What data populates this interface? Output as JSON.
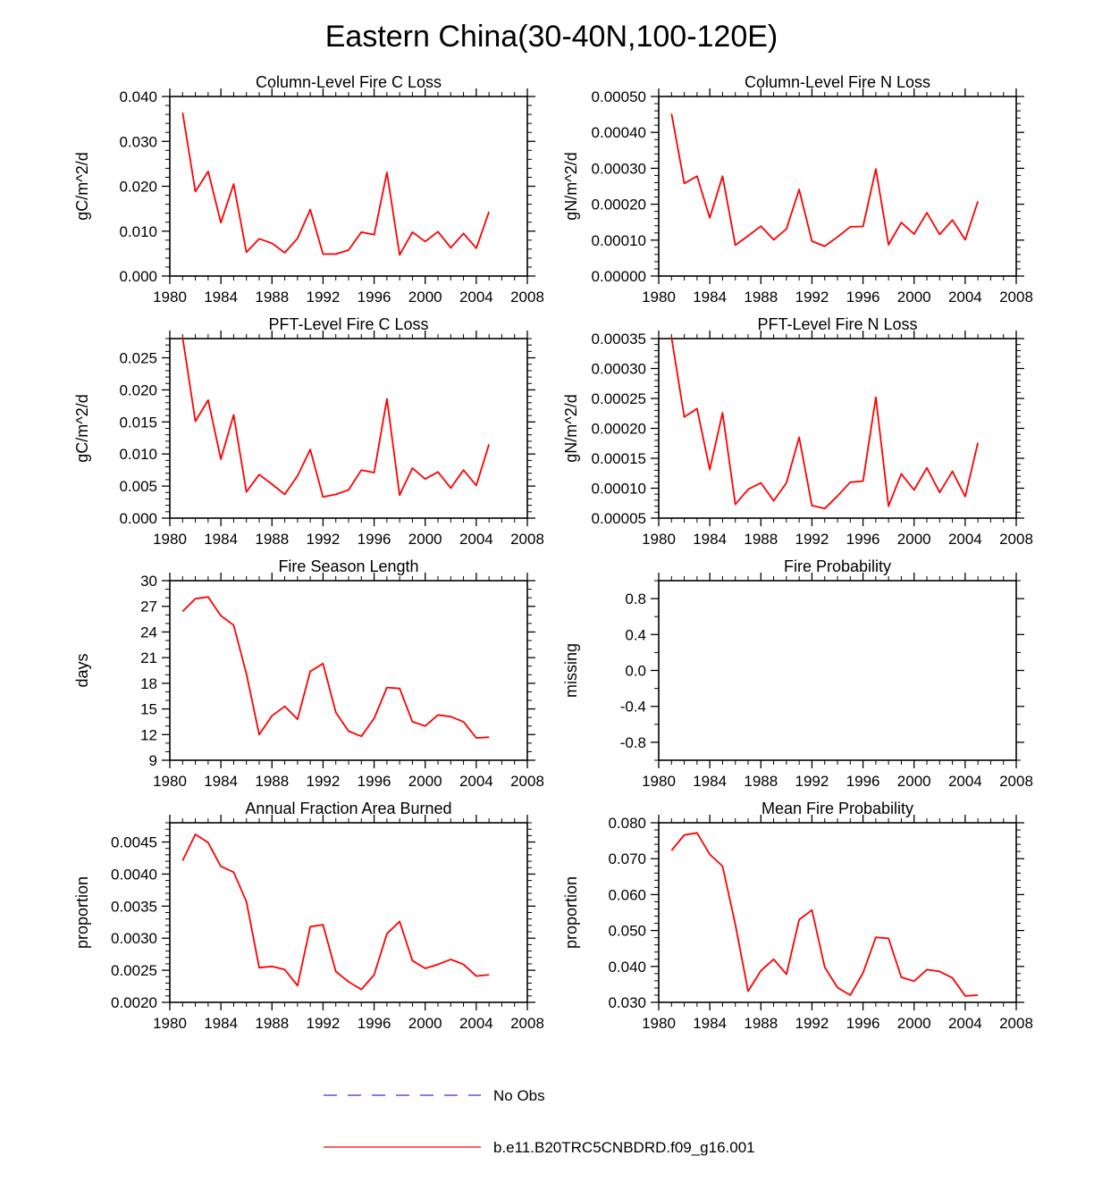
{
  "page_title": "Eastern China(30-40N,100-120E)",
  "colors": {
    "model_line": "#ff0000",
    "obs_line": "#3333cc",
    "axis": "#000000"
  },
  "legend": [
    {
      "label": "No Obs",
      "style": "dashed",
      "color": "#3333cc"
    },
    {
      "label": "b.e11.B20TRC5CNBDRD.f09_g16.001",
      "style": "solid",
      "color": "#ff0000"
    }
  ],
  "chart_data": [
    {
      "type": "line",
      "title": "Column-Level Fire C Loss",
      "ylabel": "gC/m^2/d",
      "xlim": [
        1980,
        2008
      ],
      "xticks": [
        1980,
        1984,
        1988,
        1992,
        1996,
        2000,
        2004,
        2008
      ],
      "ylim": [
        0.0,
        0.04
      ],
      "yticks": [
        0.0,
        0.01,
        0.02,
        0.03,
        0.04
      ],
      "ytick_labels": [
        "0.000",
        "0.010",
        "0.020",
        "0.030",
        "0.040"
      ],
      "yminor": 4,
      "x": [
        1981,
        1982,
        1983,
        1984,
        1985,
        1986,
        1987,
        1988,
        1989,
        1990,
        1991,
        1992,
        1993,
        1994,
        1995,
        1996,
        1997,
        1998,
        1999,
        2000,
        2001,
        2002,
        2003,
        2004,
        2005
      ],
      "series": [
        {
          "name": "b.e11.B20TRC5CNBDRD.f09_g16.001",
          "values": [
            0.0364,
            0.0188,
            0.0233,
            0.0119,
            0.0205,
            0.0053,
            0.0083,
            0.0073,
            0.0052,
            0.0084,
            0.0148,
            0.0049,
            0.0049,
            0.0058,
            0.0098,
            0.0092,
            0.0231,
            0.0047,
            0.0098,
            0.0077,
            0.0099,
            0.0063,
            0.0095,
            0.0062,
            0.0143
          ]
        }
      ]
    },
    {
      "type": "line",
      "title": "Column-Level Fire N Loss",
      "ylabel": "gN/m^2/d",
      "xlim": [
        1980,
        2008
      ],
      "xticks": [
        1980,
        1984,
        1988,
        1992,
        1996,
        2000,
        2004,
        2008
      ],
      "ylim": [
        0.0,
        0.0005
      ],
      "yticks": [
        0.0,
        0.0001,
        0.0002,
        0.0003,
        0.0004,
        0.0005
      ],
      "ytick_labels": [
        "0.00000",
        "0.00010",
        "0.00020",
        "0.00030",
        "0.00040",
        "0.00050"
      ],
      "yminor": 4,
      "x": [
        1981,
        1982,
        1983,
        1984,
        1985,
        1986,
        1987,
        1988,
        1989,
        1990,
        1991,
        1992,
        1993,
        1994,
        1995,
        1996,
        1997,
        1998,
        1999,
        2000,
        2001,
        2002,
        2003,
        2004,
        2005
      ],
      "series": [
        {
          "name": "b.e11.B20TRC5CNBDRD.f09_g16.001",
          "values": [
            0.000452,
            0.000258,
            0.000278,
            0.000162,
            0.000278,
            8.6e-05,
            0.000112,
            0.000139,
            0.000101,
            0.000131,
            0.000241,
            9.7e-05,
            8.3e-05,
            0.000109,
            0.000137,
            0.000138,
            0.000298,
            8.7e-05,
            0.000149,
            0.000117,
            0.000176,
            0.000116,
            0.000156,
            0.000101,
            0.000208
          ]
        }
      ]
    },
    {
      "type": "line",
      "title": "PFT-Level Fire C Loss",
      "ylabel": "gC/m^2/d",
      "xlim": [
        1980,
        2008
      ],
      "xticks": [
        1980,
        1984,
        1988,
        1992,
        1996,
        2000,
        2004,
        2008
      ],
      "ylim": [
        0.0,
        0.028
      ],
      "yticks": [
        0.0,
        0.005,
        0.01,
        0.015,
        0.02,
        0.025
      ],
      "ytick_labels": [
        "0.000",
        "0.005",
        "0.010",
        "0.015",
        "0.020",
        "0.025"
      ],
      "yminor": 4,
      "x": [
        1981,
        1982,
        1983,
        1984,
        1985,
        1986,
        1987,
        1988,
        1989,
        1990,
        1991,
        1992,
        1993,
        1994,
        1995,
        1996,
        1997,
        1998,
        1999,
        2000,
        2001,
        2002,
        2003,
        2004,
        2005
      ],
      "series": [
        {
          "name": "b.e11.B20TRC5CNBDRD.f09_g16.001",
          "values": [
            0.0282,
            0.0151,
            0.0184,
            0.0092,
            0.0161,
            0.0041,
            0.0068,
            0.0053,
            0.0037,
            0.0066,
            0.0107,
            0.0033,
            0.0037,
            0.0044,
            0.0075,
            0.0071,
            0.0186,
            0.0036,
            0.0078,
            0.0061,
            0.0072,
            0.0047,
            0.0075,
            0.0051,
            0.0115
          ]
        }
      ]
    },
    {
      "type": "line",
      "title": "PFT-Level Fire N Loss",
      "ylabel": "gN/m^2/d",
      "xlim": [
        1980,
        2008
      ],
      "xticks": [
        1980,
        1984,
        1988,
        1992,
        1996,
        2000,
        2004,
        2008
      ],
      "ylim": [
        5e-05,
        0.00035
      ],
      "yticks": [
        5e-05,
        0.0001,
        0.00015,
        0.0002,
        0.00025,
        0.0003,
        0.00035
      ],
      "ytick_labels": [
        "0.00005",
        "0.00010",
        "0.00015",
        "0.00020",
        "0.00025",
        "0.00030",
        "0.00035"
      ],
      "yminor": 4,
      "x": [
        1981,
        1982,
        1983,
        1984,
        1985,
        1986,
        1987,
        1988,
        1989,
        1990,
        1991,
        1992,
        1993,
        1994,
        1995,
        1996,
        1997,
        1998,
        1999,
        2000,
        2001,
        2002,
        2003,
        2004,
        2005
      ],
      "series": [
        {
          "name": "b.e11.B20TRC5CNBDRD.f09_g16.001",
          "values": [
            0.000352,
            0.000219,
            0.000233,
            0.000131,
            0.000226,
            7.3e-05,
            9.8e-05,
            0.000109,
            7.9e-05,
            0.000109,
            0.000185,
            7.1e-05,
            6.6e-05,
            8.7e-05,
            0.00011,
            0.000112,
            0.000252,
            7e-05,
            0.000124,
            9.7e-05,
            0.000134,
            9.3e-05,
            0.000128,
            8.6e-05,
            0.000176
          ]
        }
      ]
    },
    {
      "type": "line",
      "title": "Fire Season Length",
      "ylabel": "days",
      "xlim": [
        1980,
        2008
      ],
      "xticks": [
        1980,
        1984,
        1988,
        1992,
        1996,
        2000,
        2004,
        2008
      ],
      "ylim": [
        9,
        30
      ],
      "yticks": [
        9,
        12,
        15,
        18,
        21,
        24,
        27,
        30
      ],
      "ytick_labels": [
        "9",
        "12",
        "15",
        "18",
        "21",
        "24",
        "27",
        "30"
      ],
      "yminor": 2,
      "x": [
        1981,
        1982,
        1983,
        1984,
        1985,
        1986,
        1987,
        1988,
        1989,
        1990,
        1991,
        1992,
        1993,
        1994,
        1995,
        1996,
        1997,
        1998,
        1999,
        2000,
        2001,
        2002,
        2003,
        2004,
        2005
      ],
      "series": [
        {
          "name": "b.e11.B20TRC5CNBDRD.f09_g16.001",
          "values": [
            26.4,
            27.9,
            28.1,
            25.9,
            24.8,
            19.1,
            12.0,
            14.2,
            15.3,
            13.8,
            19.4,
            20.3,
            14.6,
            12.4,
            11.8,
            13.9,
            17.5,
            17.4,
            13.5,
            13.0,
            14.3,
            14.1,
            13.5,
            11.6,
            11.7
          ]
        }
      ]
    },
    {
      "type": "line",
      "title": "Fire Probability",
      "ylabel": "missing",
      "xlim": [
        1980,
        2008
      ],
      "xticks": [
        1980,
        1984,
        1988,
        1992,
        1996,
        2000,
        2004,
        2008
      ],
      "ylim": [
        -1.0,
        1.0
      ],
      "yticks": [
        -0.8,
        -0.4,
        0.0,
        0.4,
        0.8
      ],
      "ytick_labels": [
        "-0.8",
        "-0.4",
        "0.0",
        "0.4",
        "0.8"
      ],
      "yminor": 1,
      "x": [],
      "series": []
    },
    {
      "type": "line",
      "title": "Annual Fraction Area Burned",
      "ylabel": "proportion",
      "xlim": [
        1980,
        2008
      ],
      "xticks": [
        1980,
        1984,
        1988,
        1992,
        1996,
        2000,
        2004,
        2008
      ],
      "ylim": [
        0.002,
        0.0048
      ],
      "yticks": [
        0.002,
        0.0025,
        0.003,
        0.0035,
        0.004,
        0.0045
      ],
      "ytick_labels": [
        "0.0020",
        "0.0025",
        "0.0030",
        "0.0035",
        "0.0040",
        "0.0045"
      ],
      "yminor": 4,
      "x": [
        1981,
        1982,
        1983,
        1984,
        1985,
        1986,
        1987,
        1988,
        1989,
        1990,
        1991,
        1992,
        1993,
        1994,
        1995,
        1996,
        1997,
        1998,
        1999,
        2000,
        2001,
        2002,
        2003,
        2004,
        2005
      ],
      "series": [
        {
          "name": "b.e11.B20TRC5CNBDRD.f09_g16.001",
          "values": [
            0.00421,
            0.00462,
            0.00449,
            0.00412,
            0.00403,
            0.00357,
            0.00254,
            0.00256,
            0.00251,
            0.00226,
            0.00318,
            0.00321,
            0.00248,
            0.00232,
            0.0022,
            0.00243,
            0.00307,
            0.00326,
            0.00265,
            0.00253,
            0.00259,
            0.00267,
            0.00259,
            0.00241,
            0.00243
          ]
        }
      ]
    },
    {
      "type": "line",
      "title": "Mean Fire Probability",
      "ylabel": "proportion",
      "xlim": [
        1980,
        2008
      ],
      "xticks": [
        1980,
        1984,
        1988,
        1992,
        1996,
        2000,
        2004,
        2008
      ],
      "ylim": [
        0.03,
        0.08
      ],
      "yticks": [
        0.03,
        0.04,
        0.05,
        0.06,
        0.07,
        0.08
      ],
      "ytick_labels": [
        "0.030",
        "0.040",
        "0.050",
        "0.060",
        "0.070",
        "0.080"
      ],
      "yminor": 4,
      "x": [
        1981,
        1982,
        1983,
        1984,
        1985,
        1986,
        1987,
        1988,
        1989,
        1990,
        1991,
        1992,
        1993,
        1994,
        1995,
        1996,
        1997,
        1998,
        1999,
        2000,
        2001,
        2002,
        2003,
        2004,
        2005
      ],
      "series": [
        {
          "name": "b.e11.B20TRC5CNBDRD.f09_g16.001",
          "values": [
            0.0723,
            0.0766,
            0.0772,
            0.0712,
            0.0679,
            0.0517,
            0.0331,
            0.0388,
            0.042,
            0.0378,
            0.053,
            0.0557,
            0.0398,
            0.0341,
            0.032,
            0.0382,
            0.0481,
            0.0478,
            0.037,
            0.0359,
            0.0391,
            0.0386,
            0.0368,
            0.0318,
            0.032
          ]
        }
      ]
    }
  ]
}
